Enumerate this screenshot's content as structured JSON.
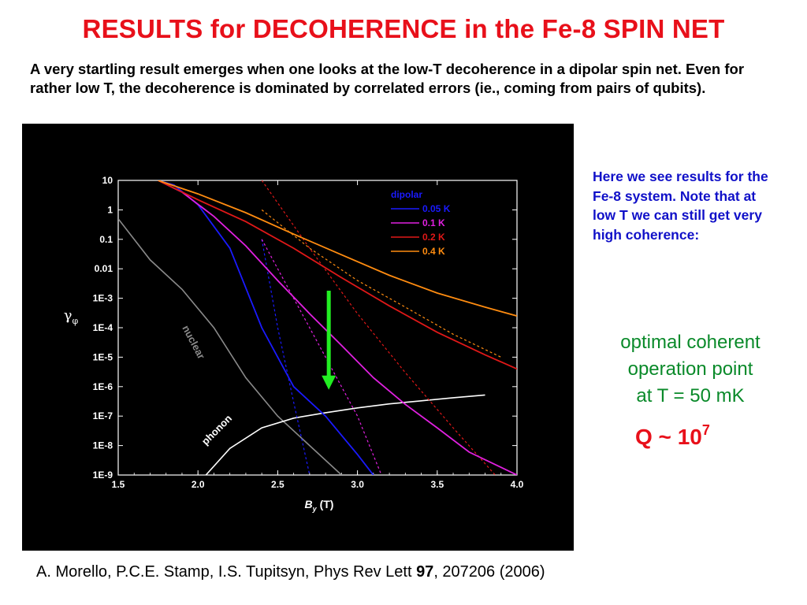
{
  "slide": {
    "title": "RESULTS for DECOHERENCE in the Fe-8 SPIN NET",
    "intro": "A very startling result emerges when one looks at the low-T decoherence in a dipolar spin net.  Even for rather low T, the decoherence is dominated by correlated errors (ie., coming from pairs of qubits).",
    "side_note": "Here we see results for the Fe-8 system. Note that at low T we can still get very high coherence:",
    "optimal_lines": [
      "optimal coherent",
      "operation point",
      "at T = 50 mK"
    ],
    "q_prefix": "Q ~ 10",
    "q_exponent": "7",
    "citation_pre": "A. Morello, P.C.E. Stamp, I.S. Tupitsyn, Phys Rev Lett ",
    "citation_vol": "97",
    "citation_post": ", 207206 (2006)"
  },
  "colors": {
    "title": "#e8101a",
    "note": "#1010c8",
    "optimal": "#0a8a2a",
    "panel_bg": "#000000",
    "arrow": "#22ee22"
  },
  "chart_data": {
    "type": "line",
    "xlabel": "B",
    "xlabel_sub": "y",
    "xlabel_unit": "(T)",
    "ylabel": "γ",
    "ylabel_sub": "φ",
    "xlim": [
      1.5,
      4.0
    ],
    "ylim": [
      1e-09,
      10
    ],
    "yscale": "log",
    "xticks": [
      "1.5",
      "2.0",
      "2.5",
      "3.0",
      "3.5",
      "4.0"
    ],
    "xtick_values": [
      1.5,
      2.0,
      2.5,
      3.0,
      3.5,
      4.0
    ],
    "yticks": [
      "10",
      "1",
      "0.1",
      "0.01",
      "1E-3",
      "1E-4",
      "1E-5",
      "1E-6",
      "1E-7",
      "1E-8",
      "1E-9"
    ],
    "ytick_exponents": [
      1,
      0,
      -1,
      -2,
      -3,
      -4,
      -5,
      -6,
      -7,
      -8,
      -9
    ],
    "legend_title": "dipolar",
    "legend_position": "top-right",
    "series": [
      {
        "name": "0.05 K",
        "color": "#1a1aff",
        "x": [
          1.75,
          1.85,
          2.0,
          2.2,
          2.4,
          2.6,
          2.8,
          3.0,
          3.1
        ],
        "y": [
          10,
          7,
          1.5,
          0.05,
          0.0001,
          1e-06,
          1e-07,
          5e-09,
          1e-09
        ]
      },
      {
        "name": "0.1 K",
        "color": "#e020e0",
        "x": [
          1.75,
          1.9,
          2.1,
          2.3,
          2.5,
          2.7,
          2.9,
          3.1,
          3.3,
          3.5,
          3.7,
          4.0
        ],
        "y": [
          10,
          4,
          0.6,
          0.06,
          0.004,
          0.0003,
          2.5e-05,
          2e-06,
          2.5e-07,
          4e-08,
          6e-09,
          1e-09
        ]
      },
      {
        "name": "0.2 K",
        "color": "#e01818",
        "x": [
          1.75,
          2.0,
          2.3,
          2.6,
          2.9,
          3.2,
          3.5,
          3.8,
          4.0
        ],
        "y": [
          10,
          2.2,
          0.4,
          0.05,
          0.005,
          0.00055,
          7e-05,
          1.2e-05,
          4e-06
        ]
      },
      {
        "name": "0.4 K",
        "color": "#ff8c10",
        "x": [
          1.75,
          2.0,
          2.3,
          2.6,
          2.9,
          3.2,
          3.5,
          3.8,
          4.0
        ],
        "y": [
          10,
          3.5,
          0.8,
          0.15,
          0.03,
          0.006,
          0.0015,
          0.0005,
          0.00025
        ]
      }
    ],
    "dashed_series": [
      {
        "color": "#1a1aff",
        "x": [
          2.4,
          2.5,
          2.6,
          2.7
        ],
        "y": [
          0.1,
          0.0001,
          3e-07,
          1e-09
        ]
      },
      {
        "color": "#e020e0",
        "x": [
          2.4,
          2.6,
          2.8,
          3.0,
          3.15
        ],
        "y": [
          0.1,
          0.001,
          1e-05,
          1e-07,
          1e-09
        ]
      },
      {
        "color": "#e01818",
        "x": [
          2.4,
          2.7,
          3.0,
          3.3,
          3.6,
          3.9
        ],
        "y": [
          10,
          0.05,
          0.0003,
          3e-06,
          4e-08,
          6e-10
        ]
      },
      {
        "color": "#ff8c10",
        "x": [
          2.4,
          2.7,
          3.0,
          3.3,
          3.6,
          3.9
        ],
        "y": [
          1,
          0.05,
          0.004,
          0.0005,
          6e-05,
          1e-05
        ]
      }
    ],
    "background_curves": [
      {
        "name": "nuclear",
        "color": "#8a8a8a",
        "x": [
          1.5,
          1.7,
          1.9,
          2.1,
          2.3,
          2.5,
          2.7,
          2.9
        ],
        "y": [
          0.5,
          0.02,
          0.002,
          0.0001,
          2e-06,
          1e-07,
          1e-08,
          1e-09
        ]
      },
      {
        "name": "phonon",
        "color": "#ffffff",
        "x": [
          2.05,
          2.2,
          2.4,
          2.6,
          2.8,
          3.0,
          3.2,
          3.4,
          3.6,
          3.8
        ],
        "y": [
          1e-09,
          8e-09,
          4e-08,
          8.5e-08,
          1.3e-07,
          1.9e-07,
          2.6e-07,
          3.3e-07,
          4.2e-07,
          5.2e-07
        ]
      }
    ],
    "annotations": [
      {
        "text": "nuclear",
        "x": 1.9,
        "y": 0.0001,
        "angle": 62,
        "color": "#8a8a8a"
      },
      {
        "text": "phonon",
        "x": 2.05,
        "y": 1e-08,
        "angle": -45,
        "color": "#ffffff"
      }
    ],
    "arrow": {
      "x": 2.82,
      "y_start": 0.0018,
      "y_end": 1e-06
    }
  }
}
